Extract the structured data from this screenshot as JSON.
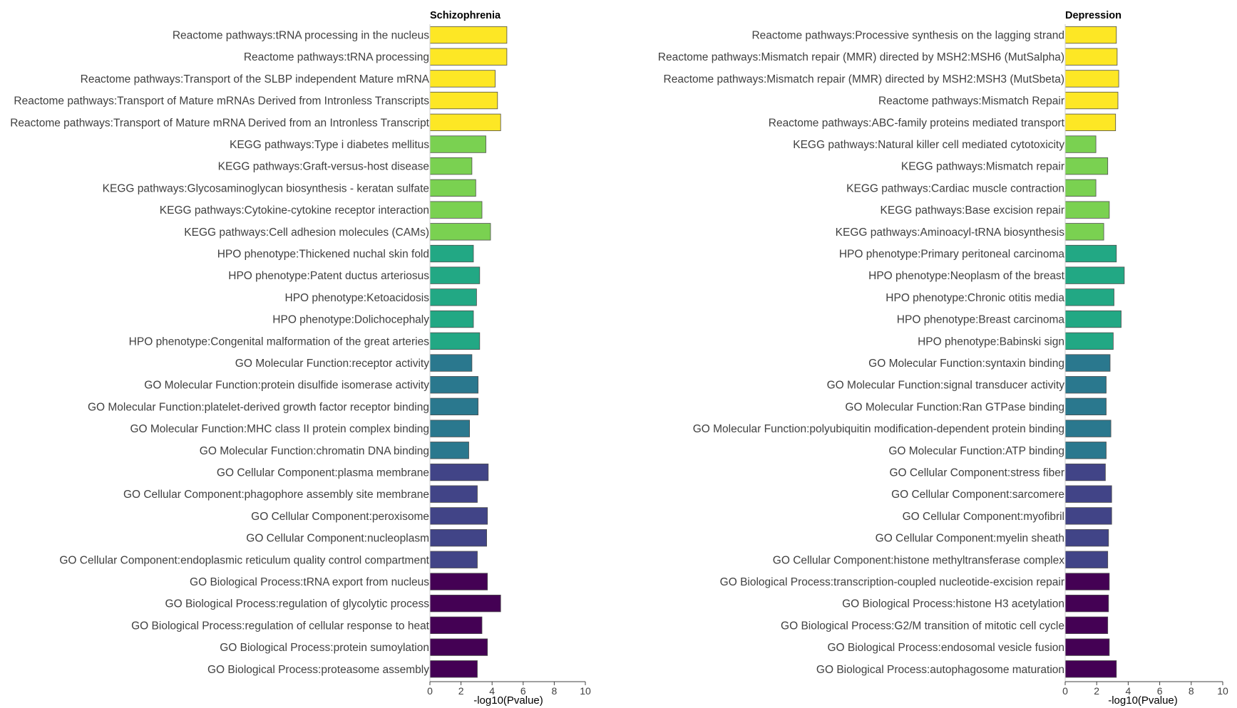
{
  "chart_data": [
    {
      "type": "bar",
      "orientation": "horizontal",
      "title": "Schizophrenia",
      "xlabel": "-log10(Pvalue)",
      "ylabel": "",
      "xlim": [
        0,
        10
      ],
      "xticks": [
        0,
        2,
        4,
        6,
        8,
        10
      ],
      "grid": false,
      "categories": [
        "Reactome pathways:tRNA processing in the nucleus",
        "Reactome pathways:tRNA processing",
        "Reactome pathways:Transport of the SLBP independent Mature mRNA",
        "Reactome pathways:Transport of Mature mRNAs Derived from Intronless Transcripts",
        "Reactome pathways:Transport of Mature mRNA Derived from an Intronless Transcript",
        "KEGG pathways:Type i diabetes mellitus",
        "KEGG pathways:Graft-versus-host disease",
        "KEGG pathways:Glycosaminoglycan biosynthesis - keratan sulfate",
        "KEGG pathways:Cytokine-cytokine receptor interaction",
        "KEGG pathways:Cell adhesion molecules (CAMs)",
        "HPO phenotype:Thickened nuchal skin fold",
        "HPO phenotype:Patent ductus arteriosus",
        "HPO phenotype:Ketoacidosis",
        "HPO phenotype:Dolichocephaly",
        "HPO phenotype:Congenital malformation of the great arteries",
        "GO Molecular Function:receptor activity",
        "GO Molecular Function:protein disulfide isomerase activity",
        "GO Molecular Function:platelet-derived growth factor receptor binding",
        "GO Molecular Function:MHC class II protein complex binding",
        "GO Molecular Function:chromatin DNA binding",
        "GO Cellular Component:plasma membrane",
        "GO Cellular Component:phagophore assembly site membrane",
        "GO Cellular Component:peroxisome",
        "GO Cellular Component:nucleoplasm",
        "GO Cellular Component:endoplasmic reticulum quality control compartment",
        "GO Biological Process:tRNA export from nucleus",
        "GO Biological Process:regulation of glycolytic process",
        "GO Biological Process:regulation of cellular response to heat",
        "GO Biological Process:protein sumoylation",
        "GO Biological Process:proteasome assembly"
      ],
      "values": [
        4.95,
        4.95,
        4.2,
        4.35,
        4.55,
        3.6,
        2.7,
        2.95,
        3.35,
        3.9,
        2.8,
        3.2,
        3.0,
        2.8,
        3.2,
        2.7,
        3.1,
        3.1,
        2.55,
        2.5,
        3.75,
        3.05,
        3.7,
        3.65,
        3.05,
        3.7,
        4.55,
        3.35,
        3.7,
        3.05
      ],
      "groups": [
        "Reactome",
        "Reactome",
        "Reactome",
        "Reactome",
        "Reactome",
        "KEGG",
        "KEGG",
        "KEGG",
        "KEGG",
        "KEGG",
        "HPO",
        "HPO",
        "HPO",
        "HPO",
        "HPO",
        "GOMF",
        "GOMF",
        "GOMF",
        "GOMF",
        "GOMF",
        "GOCC",
        "GOCC",
        "GOCC",
        "GOCC",
        "GOCC",
        "GOBP",
        "GOBP",
        "GOBP",
        "GOBP",
        "GOBP"
      ]
    },
    {
      "type": "bar",
      "orientation": "horizontal",
      "title": "Depression",
      "xlabel": "-log10(Pvalue)",
      "ylabel": "",
      "xlim": [
        0,
        10
      ],
      "xticks": [
        0,
        2,
        4,
        6,
        8,
        10
      ],
      "grid": false,
      "categories": [
        "Reactome pathways:Processive synthesis on the lagging strand",
        "Reactome pathways:Mismatch repair (MMR) directed by MSH2:MSH6 (MutSalpha)",
        "Reactome pathways:Mismatch repair (MMR) directed by MSH2:MSH3 (MutSbeta)",
        "Reactome pathways:Mismatch Repair",
        "Reactome pathways:ABC-family proteins mediated transport",
        "KEGG pathways:Natural killer cell mediated cytotoxicity",
        "KEGG pathways:Mismatch repair",
        "KEGG pathways:Cardiac muscle contraction",
        "KEGG pathways:Base excision repair",
        "KEGG pathways:Aminoacyl-tRNA biosynthesis",
        "HPO phenotype:Primary peritoneal carcinoma",
        "HPO phenotype:Neoplasm of the breast",
        "HPO phenotype:Chronic otitis media",
        "HPO phenotype:Breast carcinoma",
        "HPO phenotype:Babinski sign",
        "GO Molecular Function:syntaxin binding",
        "GO Molecular Function:signal transducer activity",
        "GO Molecular Function:Ran GTPase binding",
        "GO Molecular Function:polyubiquitin modification-dependent protein binding",
        "GO Molecular Function:ATP binding",
        "GO Cellular Component:stress fiber",
        "GO Cellular Component:sarcomere",
        "GO Cellular Component:myofibril",
        "GO Cellular Component:myelin sheath",
        "GO Cellular Component:histone methyltransferase complex",
        "GO Biological Process:transcription-coupled nucleotide-excision repair",
        "GO Biological Process:histone H3 acetylation",
        "GO Biological Process:G2/M transition of mitotic cell cycle",
        "GO Biological Process:endosomal vesicle fusion",
        "GO Biological Process:autophagosome maturation"
      ],
      "values": [
        3.25,
        3.3,
        3.4,
        3.35,
        3.2,
        1.95,
        2.7,
        1.95,
        2.8,
        2.45,
        3.25,
        3.75,
        3.1,
        3.55,
        3.05,
        2.85,
        2.6,
        2.6,
        2.9,
        2.6,
        2.55,
        2.95,
        2.95,
        2.75,
        2.7,
        2.8,
        2.75,
        2.7,
        2.8,
        3.25
      ],
      "groups": [
        "Reactome",
        "Reactome",
        "Reactome",
        "Reactome",
        "Reactome",
        "KEGG",
        "KEGG",
        "KEGG",
        "KEGG",
        "KEGG",
        "HPO",
        "HPO",
        "HPO",
        "HPO",
        "HPO",
        "GOMF",
        "GOMF",
        "GOMF",
        "GOMF",
        "GOMF",
        "GOCC",
        "GOCC",
        "GOCC",
        "GOCC",
        "GOCC",
        "GOBP",
        "GOBP",
        "GOBP",
        "GOBP",
        "GOBP"
      ]
    }
  ],
  "group_colors": {
    "Reactome": "#fde725",
    "KEGG": "#7ad151",
    "HPO": "#22a884",
    "GOMF": "#2a788e",
    "GOCC": "#414487",
    "GOBP": "#440154"
  },
  "bar_outline_color": "#4d4d4d",
  "text_color": "#404040"
}
